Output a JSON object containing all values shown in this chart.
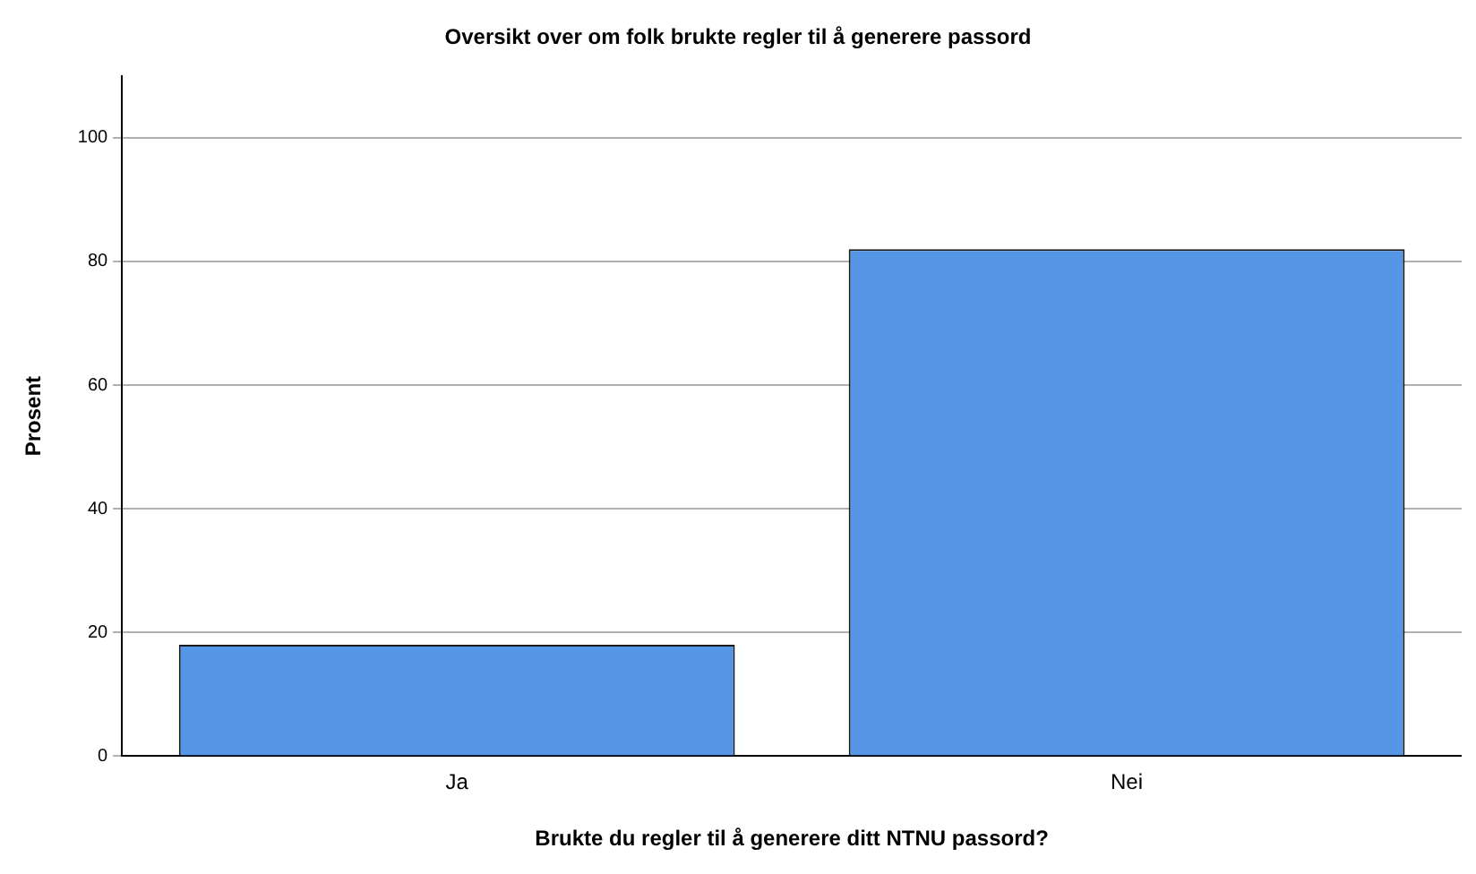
{
  "chart_data": {
    "type": "bar",
    "title": "Oversikt over om folk brukte regler til å generere passord",
    "xlabel": "Brukte du regler til å generere ditt NTNU passord?",
    "ylabel": "Prosent",
    "categories": [
      "Ja",
      "Nei"
    ],
    "values": [
      18,
      82
    ],
    "color": "#5596e6",
    "ylim": [
      0,
      110
    ],
    "yticks": [
      0,
      20,
      40,
      60,
      80,
      100
    ],
    "grid": "y",
    "legend": false
  }
}
